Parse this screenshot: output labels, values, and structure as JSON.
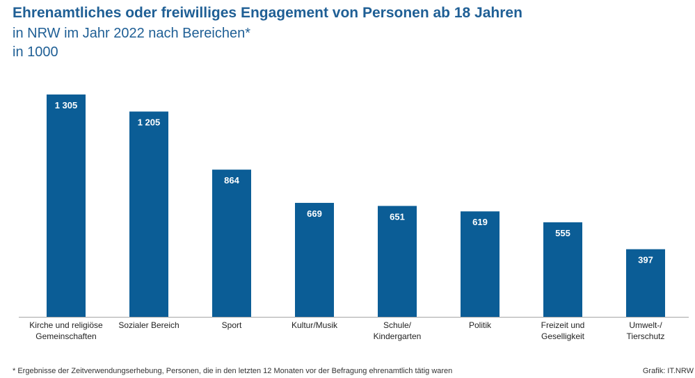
{
  "header": {
    "title": "Ehrenamtliches oder freiwilliges Engagement von Personen ab 18 Jahren",
    "subtitle": "in NRW im Jahr 2022 nach Bereichen*",
    "unit": "in 1000"
  },
  "footer": {
    "footnote": "* Ergebnisse der Zeitverwendungserhebung, Personen, die in den letzten 12 Monaten vor der Befragung ehrenamtlich tätig waren",
    "source": "Grafik: IT.NRW"
  },
  "colors": {
    "bar": "#0b5d96",
    "title": "#1f5f95",
    "axis": "#a6a6a6"
  },
  "chart_data": {
    "type": "bar",
    "categories": [
      [
        "Kirche und religiöse",
        "Gemeinschaften"
      ],
      [
        "Sozialer Bereich"
      ],
      [
        "Sport"
      ],
      [
        "Kultur/Musik"
      ],
      [
        "Schule/",
        "Kindergarten"
      ],
      [
        "Politik"
      ],
      [
        "Freizeit und",
        "Geselligkeit"
      ],
      [
        "Umwelt-/",
        "Tierschutz"
      ]
    ],
    "values": [
      1305,
      1205,
      864,
      669,
      651,
      619,
      555,
      397
    ],
    "value_labels": [
      "1 305",
      "1 205",
      "864",
      "669",
      "651",
      "619",
      "555",
      "397"
    ],
    "ylim": [
      0,
      1305
    ],
    "grid": false
  }
}
